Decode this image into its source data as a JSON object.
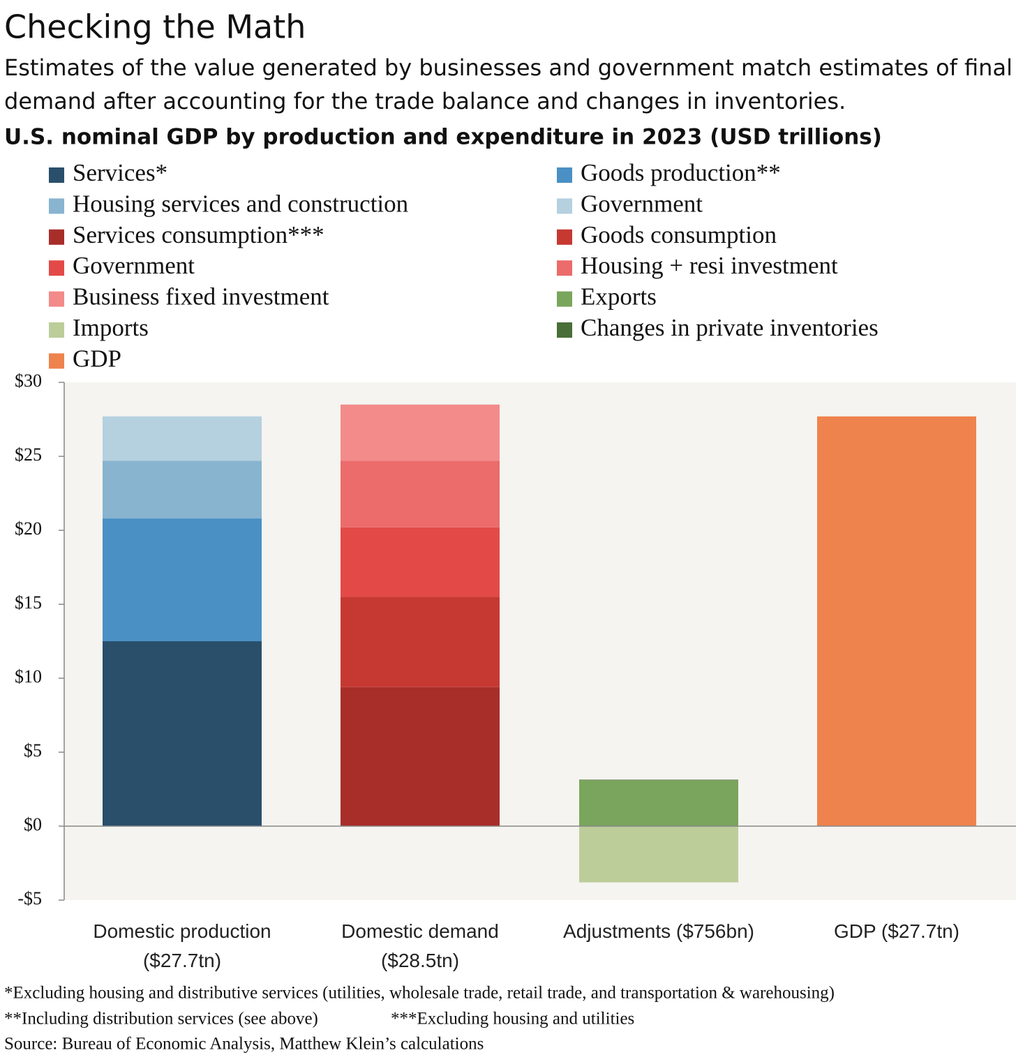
{
  "chart_data": {
    "type": "stacked_bar",
    "title": "Checking the Math",
    "subtitle": "Estimates of the value generated by businesses and government match estimates of final demand after accounting for the trade balance and changes in inventories.",
    "chart_title": "U.S. nominal GDP by production and expenditure in 2023 (USD trillions)",
    "categories": [
      "Domestic production ($27.7tn)",
      "Domestic demand ($28.5tn)",
      "Adjustments ($756bn)",
      "GDP ($27.7tn)"
    ],
    "series": [
      {
        "name": "Services*",
        "color": "#2a4f6b",
        "values": [
          12.5,
          null,
          null,
          null
        ]
      },
      {
        "name": "Goods production**",
        "color": "#4a90c4",
        "values": [
          8.3,
          null,
          null,
          null
        ]
      },
      {
        "name": "Housing services and construction",
        "color": "#88b4cf",
        "values": [
          3.9,
          null,
          null,
          null
        ]
      },
      {
        "name": "Government",
        "color": "#b5d0df",
        "values": [
          3.0,
          null,
          null,
          null
        ]
      },
      {
        "name": "Services consumption***",
        "color": "#a82e2a",
        "values": [
          null,
          9.4,
          null,
          null
        ]
      },
      {
        "name": "Goods consumption",
        "color": "#c63832",
        "values": [
          null,
          6.1,
          null,
          null
        ]
      },
      {
        "name": "Government",
        "color": "#e34a47",
        "values": [
          null,
          4.7,
          null,
          null
        ]
      },
      {
        "name": "Housing + resi investment",
        "color": "#ec6b6b",
        "values": [
          null,
          4.5,
          null,
          null
        ]
      },
      {
        "name": "Business fixed investment",
        "color": "#f28b8a",
        "values": [
          null,
          3.8,
          null,
          null
        ]
      },
      {
        "name": "Exports",
        "color": "#7aa55c",
        "values": [
          null,
          null,
          3.1,
          null
        ]
      },
      {
        "name": "Imports",
        "color": "#bccd9a",
        "values": [
          null,
          null,
          -3.8,
          null
        ]
      },
      {
        "name": "Changes in private inventories",
        "color": "#4a6e37",
        "values": [
          null,
          null,
          0.04,
          null
        ]
      },
      {
        "name": "GDP",
        "color": "#ee834d",
        "values": [
          null,
          null,
          null,
          27.7
        ]
      }
    ],
    "ylim": [
      -5,
      30
    ],
    "yticks": [
      {
        "value": -5,
        "label": "-$5"
      },
      {
        "value": 0,
        "label": "$0"
      },
      {
        "value": 5,
        "label": "$5"
      },
      {
        "value": 10,
        "label": "$10"
      },
      {
        "value": 15,
        "label": "$15"
      },
      {
        "value": 20,
        "label": "$20"
      },
      {
        "value": 25,
        "label": "$25"
      },
      {
        "value": 30,
        "label": "$30"
      }
    ],
    "notes": [
      "*Excluding housing and distributive services (utilities, wholesale trade, retail trade, and transportation & warehousing)",
      "**Including distribution services (see above)",
      "***Excluding housing and utilities"
    ],
    "source": "Source: Bureau of Economic Analysis, Matthew Klein’s calculations"
  }
}
